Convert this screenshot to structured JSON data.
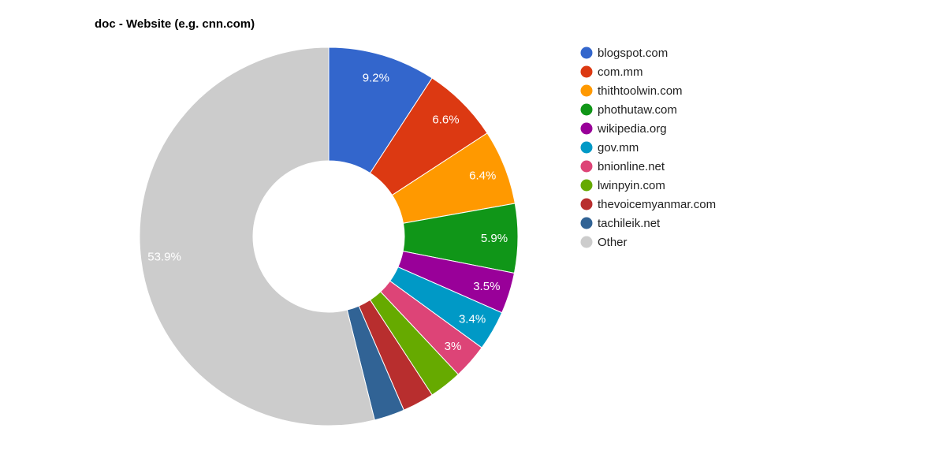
{
  "chart_data": {
    "type": "pie",
    "donut": true,
    "title": "doc - Website (e.g. cnn.com)",
    "legend_position": "right",
    "slices": [
      {
        "label": "blogspot.com",
        "value": 9.2,
        "display": "9.2%",
        "color": "#3366cc"
      },
      {
        "label": "com.mm",
        "value": 6.6,
        "display": "6.6%",
        "color": "#dc3912"
      },
      {
        "label": "thithtoolwin.com",
        "value": 6.4,
        "display": "6.4%",
        "color": "#ff9900"
      },
      {
        "label": "phothutaw.com",
        "value": 5.9,
        "display": "5.9%",
        "color": "#109618"
      },
      {
        "label": "wikipedia.org",
        "value": 3.5,
        "display": "3.5%",
        "color": "#990099"
      },
      {
        "label": "gov.mm",
        "value": 3.4,
        "display": "3.4%",
        "color": "#0099c6"
      },
      {
        "label": "bnionline.net",
        "value": 3.0,
        "display": "3%",
        "color": "#dd4477"
      },
      {
        "label": "lwinpyin.com",
        "value": 2.8,
        "display": "",
        "color": "#66aa00"
      },
      {
        "label": "thevoicemyanmar.com",
        "value": 2.7,
        "display": "",
        "color": "#b82e2e"
      },
      {
        "label": "tachileik.net",
        "value": 2.6,
        "display": "",
        "color": "#316395"
      },
      {
        "label": "Other",
        "value": 53.9,
        "display": "53.9%",
        "color": "#cccccc"
      }
    ]
  }
}
